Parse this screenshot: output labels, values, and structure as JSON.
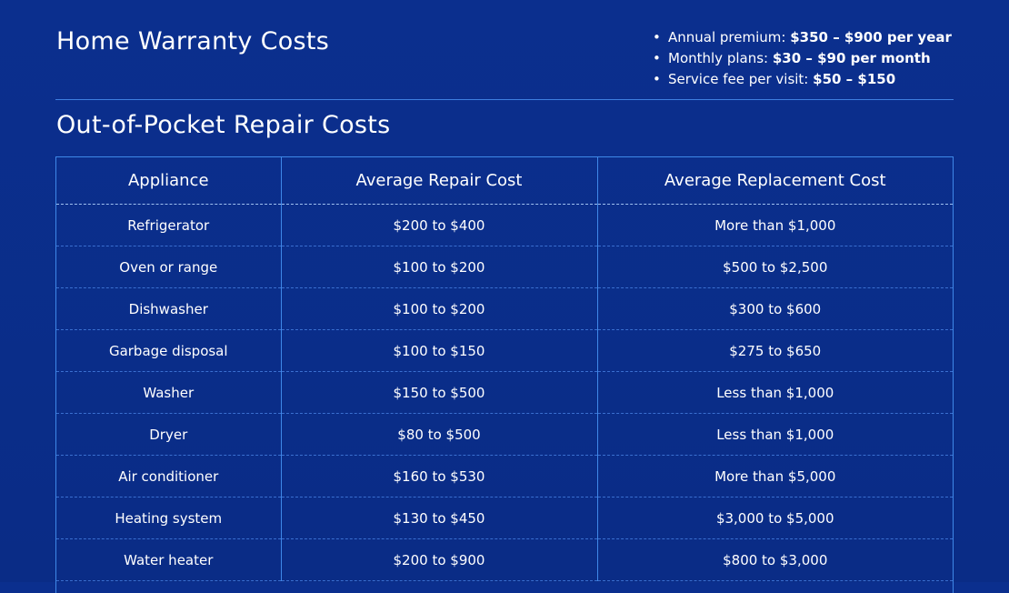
{
  "header": {
    "title": "Home Warranty Costs",
    "bullets": [
      {
        "label": "Annual premium: ",
        "value": "$350 – $900 per year"
      },
      {
        "label": "Monthly plans: ",
        "value": "$30 – $90 per month"
      },
      {
        "label": "Service fee per visit: ",
        "value": "$50 – $150"
      }
    ]
  },
  "section": {
    "title": "Out-of-Pocket Repair Costs"
  },
  "table": {
    "headers": [
      "Appliance",
      "Average Repair Cost",
      "Average Replacement Cost"
    ],
    "rows": [
      [
        "Refrigerator",
        "$200 to $400",
        "More than $1,000"
      ],
      [
        "Oven or range",
        "$100 to $200",
        "$500 to $2,500"
      ],
      [
        "Dishwasher",
        "$100 to $200",
        "$300 to $600"
      ],
      [
        "Garbage disposal",
        "$100 to $150",
        "$275 to $650"
      ],
      [
        "Washer",
        "$150 to $500",
        "Less than $1,000"
      ],
      [
        "Dryer",
        "$80 to $500",
        "Less than $1,000"
      ],
      [
        "Air conditioner",
        "$160 to $530",
        "More than $5,000"
      ],
      [
        "Heating system",
        "$130 to $450",
        "$3,000 to $5,000"
      ],
      [
        "Water heater",
        "$200 to $900",
        "$800 to $3,000"
      ]
    ]
  }
}
